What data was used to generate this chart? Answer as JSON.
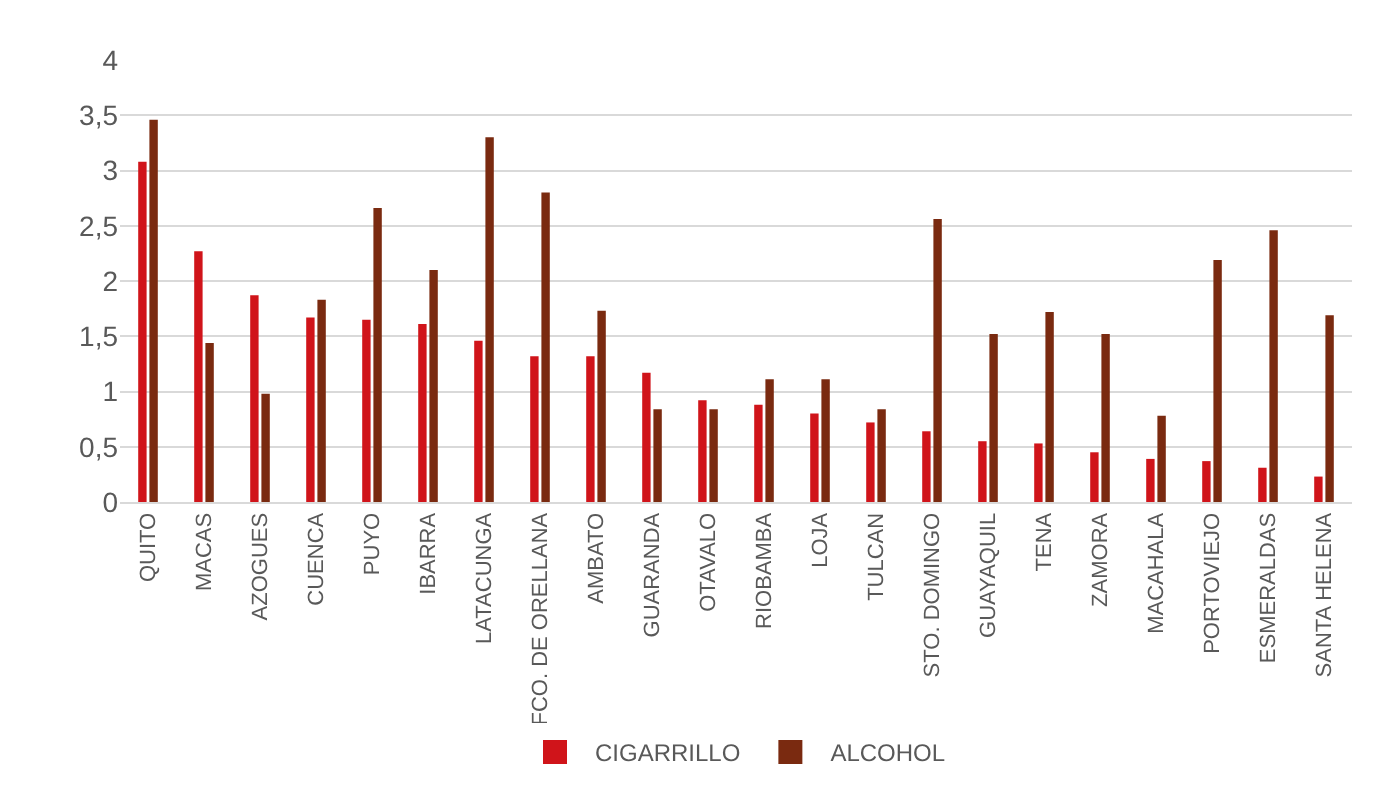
{
  "chart_data": {
    "type": "bar",
    "categories": [
      "QUITO",
      "MACAS",
      "AZOGUES",
      "CUENCA",
      "PUYO",
      "IBARRA",
      "LATACUNGA",
      "FCO. DE ORELLANA",
      "AMBATO",
      "GUARANDA",
      "OTAVALO",
      "RIOBAMBA",
      "LOJA",
      "TULCAN",
      "STO. DOMINGO",
      "GUAYAQUIL",
      "TENA",
      "ZAMORA",
      "MACAHALA",
      "PORTOVIEJO",
      "ESMERALDAS",
      "SANTA HELENA"
    ],
    "series": [
      {
        "name": "CIGARRILLO",
        "color": "#d0141a",
        "values": [
          3.08,
          2.27,
          1.87,
          1.67,
          1.65,
          1.61,
          1.46,
          1.32,
          1.32,
          1.17,
          0.92,
          0.88,
          0.8,
          0.72,
          0.64,
          0.55,
          0.53,
          0.45,
          0.39,
          0.37,
          0.31,
          0.23
        ]
      },
      {
        "name": "ALCOHOL",
        "color": "#7a2a10",
        "values": [
          3.46,
          1.44,
          0.98,
          1.83,
          2.66,
          2.1,
          3.3,
          2.8,
          1.73,
          0.84,
          0.84,
          1.11,
          1.11,
          0.84,
          2.56,
          1.52,
          1.72,
          1.52,
          0.78,
          2.19,
          2.46,
          1.69
        ]
      }
    ],
    "ylim": [
      0,
      4
    ],
    "yticks": [
      0,
      {
        "value": 0.5,
        "label": "0,5"
      },
      1,
      {
        "value": 1.5,
        "label": "1,5"
      },
      2,
      {
        "value": 2.5,
        "label": "2,5"
      },
      3,
      {
        "value": 3.5,
        "label": "3,5"
      },
      4
    ],
    "grid": "y",
    "legend": "bottom"
  }
}
